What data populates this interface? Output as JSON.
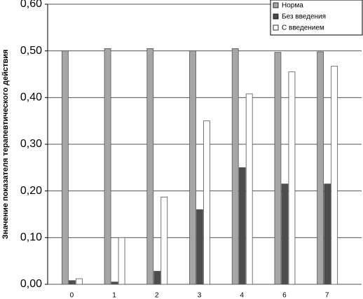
{
  "chart_data": {
    "type": "bar",
    "y_label": "Значение показателя терапевтического действия",
    "categories": [
      "0",
      "1",
      "2",
      "3",
      "4",
      "6",
      "7"
    ],
    "series": [
      {
        "name": "Норма",
        "color": "#a6a6a6",
        "values": [
          0.5,
          0.505,
          0.505,
          0.5,
          0.505,
          0.497,
          0.498
        ]
      },
      {
        "name": "Без введения",
        "color": "#4d4d4d",
        "values": [
          0.008,
          0.005,
          0.028,
          0.16,
          0.25,
          0.215,
          0.215
        ]
      },
      {
        "name": "С введением",
        "color": "#ffffff",
        "values": [
          0.012,
          0.1,
          0.187,
          0.35,
          0.408,
          0.455,
          0.467
        ]
      }
    ],
    "ylim": [
      0,
      0.6
    ],
    "yticks": [
      {
        "value": 0,
        "label": "0,00"
      },
      {
        "value": 0.1,
        "label": "0,10"
      },
      {
        "value": 0.2,
        "label": "0,20"
      },
      {
        "value": 0.3,
        "label": "0,30"
      },
      {
        "value": 0.4,
        "label": "0,40"
      },
      {
        "value": 0.5,
        "label": "0,50"
      },
      {
        "value": 0.6,
        "label": "0,60"
      }
    ],
    "grid": true,
    "legend": "top-right"
  }
}
